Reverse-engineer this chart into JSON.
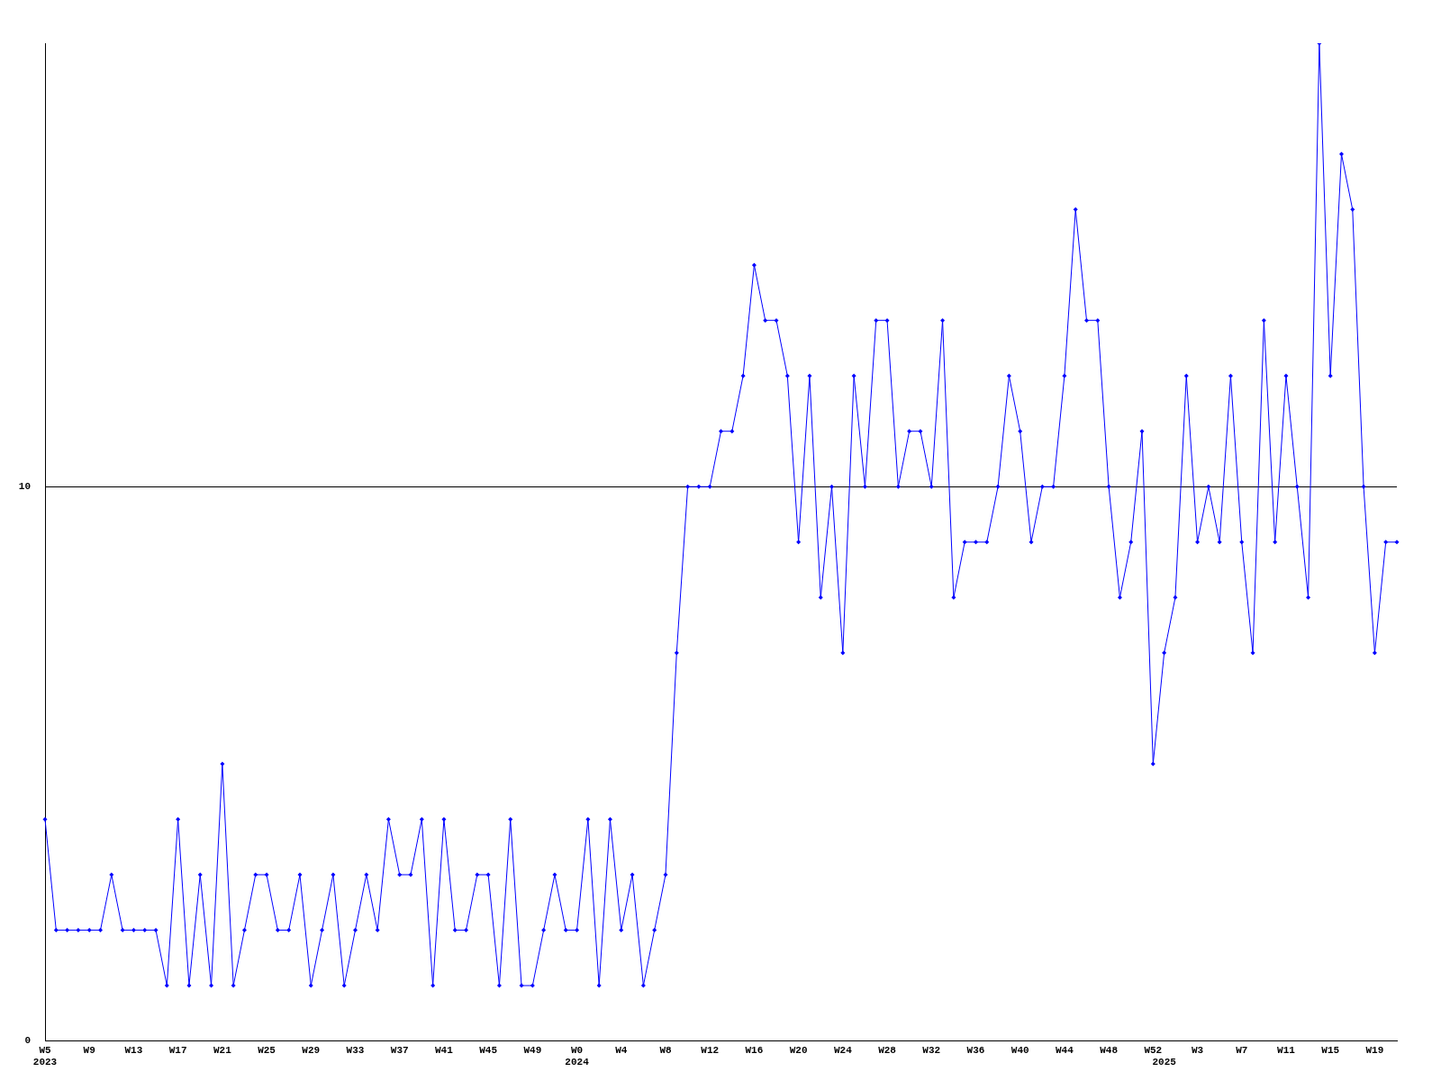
{
  "chart_data": {
    "type": "line",
    "categories": [
      "W5\n2023",
      null,
      null,
      null,
      "W9",
      null,
      null,
      null,
      "W13",
      null,
      null,
      null,
      "W17",
      null,
      null,
      null,
      "W21",
      null,
      null,
      null,
      "W25",
      null,
      null,
      null,
      "W29",
      null,
      null,
      null,
      "W33",
      null,
      null,
      null,
      "W37",
      null,
      null,
      null,
      "W41",
      null,
      null,
      null,
      "W45",
      null,
      null,
      null,
      "W49",
      null,
      null,
      null,
      "W0\n2024",
      null,
      null,
      null,
      "W4",
      null,
      null,
      null,
      "W8",
      null,
      null,
      null,
      "W12",
      null,
      null,
      null,
      "W16",
      null,
      null,
      null,
      "W20",
      null,
      null,
      null,
      "W24",
      null,
      null,
      null,
      "W28",
      null,
      null,
      null,
      "W32",
      null,
      null,
      null,
      "W36",
      null,
      null,
      null,
      "W40",
      null,
      null,
      null,
      "W44",
      null,
      null,
      null,
      "W48",
      null,
      null,
      null,
      "W52",
      "\n2025",
      null,
      null,
      "W3",
      null,
      null,
      null,
      "W7",
      null,
      null,
      null,
      "W11",
      null,
      null,
      null,
      "W15",
      null,
      null,
      null,
      "W19",
      null,
      null
    ],
    "series": [
      {
        "color": "#0000ff",
        "values": [
          4,
          2,
          2,
          2,
          2,
          2,
          3,
          2,
          2,
          2,
          2,
          1,
          4,
          1,
          3,
          1,
          5,
          1,
          2,
          3,
          3,
          2,
          2,
          3,
          1,
          2,
          3,
          1,
          2,
          3,
          2,
          4,
          3,
          3,
          4,
          1,
          4,
          2,
          2,
          3,
          3,
          1,
          4,
          1,
          1,
          2,
          3,
          2,
          2,
          4,
          1,
          4,
          2,
          3,
          1,
          2,
          3,
          7,
          10,
          10,
          10,
          11,
          11,
          12,
          14,
          13,
          13,
          12,
          9,
          12,
          8,
          10,
          7,
          12,
          10,
          13,
          13,
          10,
          11,
          11,
          10,
          13,
          8,
          9,
          9,
          9,
          10,
          12,
          11,
          9,
          10,
          10,
          12,
          15,
          13,
          13,
          10,
          8,
          9,
          11,
          5,
          7,
          8,
          12,
          9,
          10,
          9,
          12,
          9,
          7,
          13,
          9,
          12,
          10,
          8,
          18,
          12,
          16,
          15,
          10,
          7,
          9,
          9
        ]
      }
    ],
    "ylim": [
      0,
      18
    ],
    "yticks": [
      0,
      10
    ],
    "grid": "y",
    "marker": "diamond",
    "line_style": "solid"
  }
}
